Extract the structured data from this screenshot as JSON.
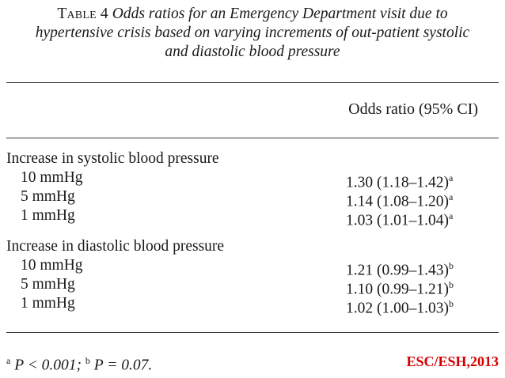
{
  "caption": {
    "label": "Table 4",
    "text_line1": "Odds ratios for an Emergency Department visit due to",
    "text_line2": "hypertensive crisis based on varying increments of out-patient systolic",
    "text_line3": "and diastolic blood pressure"
  },
  "table": {
    "column_header": "Odds ratio (95% CI)",
    "groups": [
      {
        "heading": "Increase in systolic blood pressure",
        "rows": [
          {
            "label": "10 mmHg",
            "value": "1.30 (1.18–1.42)",
            "note": "a"
          },
          {
            "label": "5 mmHg",
            "value": "1.14 (1.08–1.20)",
            "note": "a"
          },
          {
            "label": "1 mmHg",
            "value": "1.03 (1.01–1.04)",
            "note": "a"
          }
        ]
      },
      {
        "heading": "Increase in diastolic blood pressure",
        "rows": [
          {
            "label": "10 mmHg",
            "value": "1.21 (0.99–1.43)",
            "note": "b"
          },
          {
            "label": "5 mmHg",
            "value": "1.10 (0.99–1.21)",
            "note": "b"
          },
          {
            "label": "1 mmHg",
            "value": "1.02 (1.00–1.03)",
            "note": "b"
          }
        ]
      }
    ]
  },
  "footnote": {
    "a_mark": "a",
    "a_text": "P < 0.001;",
    "b_mark": "b",
    "b_text": "P = 0.07."
  },
  "source": "ESC/ESH,2013",
  "colors": {
    "source": "#d40000",
    "rule": "#333333"
  }
}
